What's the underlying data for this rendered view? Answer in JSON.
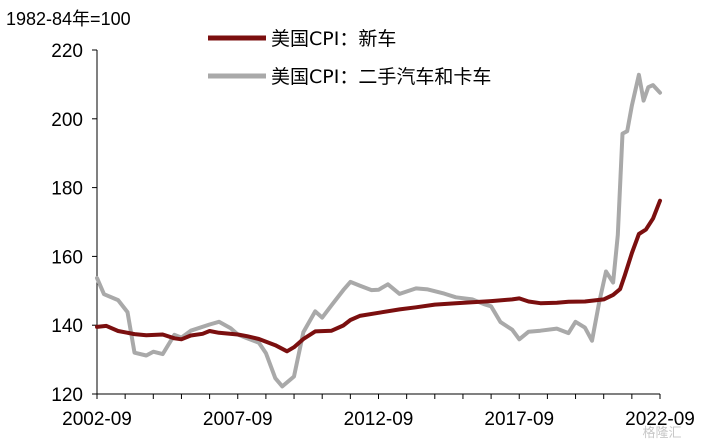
{
  "chart_data": {
    "type": "line",
    "unit_label": "1982-84年=100",
    "ylim": [
      120,
      220
    ],
    "yticks": [
      120,
      140,
      160,
      180,
      200,
      220
    ],
    "xlim": [
      "2002-09",
      "2022-09"
    ],
    "xticks": [
      "2002-09",
      "2007-09",
      "2012-09",
      "2017-09",
      "2022-09"
    ],
    "grid": false,
    "legend_position": "top-center",
    "series": [
      {
        "name": "美国CPI：新车",
        "color": "#7b0f0f",
        "points": [
          [
            "2002-09",
            139.5
          ],
          [
            "2003-01",
            139.8
          ],
          [
            "2003-06",
            138.3
          ],
          [
            "2004-01",
            137.4
          ],
          [
            "2004-06",
            137.1
          ],
          [
            "2005-01",
            137.3
          ],
          [
            "2005-06",
            136.2
          ],
          [
            "2005-09",
            135.9
          ],
          [
            "2006-01",
            137.0
          ],
          [
            "2006-06",
            137.5
          ],
          [
            "2006-09",
            138.3
          ],
          [
            "2007-01",
            137.8
          ],
          [
            "2007-09",
            137.3
          ],
          [
            "2008-01",
            136.8
          ],
          [
            "2008-06",
            136.0
          ],
          [
            "2009-01",
            134.2
          ],
          [
            "2009-06",
            132.4
          ],
          [
            "2009-09",
            133.6
          ],
          [
            "2010-01",
            136.0
          ],
          [
            "2010-06",
            138.2
          ],
          [
            "2011-01",
            138.4
          ],
          [
            "2011-06",
            139.9
          ],
          [
            "2011-09",
            141.5
          ],
          [
            "2012-01",
            142.7
          ],
          [
            "2012-09",
            143.6
          ],
          [
            "2013-06",
            144.6
          ],
          [
            "2014-01",
            145.2
          ],
          [
            "2014-09",
            146.0
          ],
          [
            "2015-06",
            146.4
          ],
          [
            "2016-01",
            146.7
          ],
          [
            "2016-09",
            147.0
          ],
          [
            "2017-06",
            147.5
          ],
          [
            "2017-09",
            147.8
          ],
          [
            "2018-01",
            146.9
          ],
          [
            "2018-06",
            146.4
          ],
          [
            "2019-01",
            146.5
          ],
          [
            "2019-06",
            146.8
          ],
          [
            "2020-01",
            146.9
          ],
          [
            "2020-09",
            147.5
          ],
          [
            "2021-01",
            148.8
          ],
          [
            "2021-04",
            150.5
          ],
          [
            "2021-06",
            154.5
          ],
          [
            "2021-09",
            161.0
          ],
          [
            "2021-12",
            166.5
          ],
          [
            "2022-03",
            167.8
          ],
          [
            "2022-06",
            171.0
          ],
          [
            "2022-09",
            176.2
          ]
        ]
      },
      {
        "name": "美国CPI：二手汽车和卡车",
        "color": "#a9a9a9",
        "points": [
          [
            "2002-09",
            153.7
          ],
          [
            "2002-12",
            149.0
          ],
          [
            "2003-06",
            147.3
          ],
          [
            "2003-10",
            143.8
          ],
          [
            "2004-01",
            132.0
          ],
          [
            "2004-06",
            131.2
          ],
          [
            "2004-09",
            132.3
          ],
          [
            "2005-01",
            131.6
          ],
          [
            "2005-06",
            137.2
          ],
          [
            "2005-09",
            136.4
          ],
          [
            "2006-01",
            138.4
          ],
          [
            "2006-09",
            140.2
          ],
          [
            "2007-01",
            141.0
          ],
          [
            "2007-06",
            139.1
          ],
          [
            "2007-09",
            137.3
          ],
          [
            "2008-01",
            136.2
          ],
          [
            "2008-06",
            134.9
          ],
          [
            "2008-09",
            131.9
          ],
          [
            "2009-01",
            124.6
          ],
          [
            "2009-04",
            122.2
          ],
          [
            "2009-09",
            125.1
          ],
          [
            "2010-01",
            138.0
          ],
          [
            "2010-06",
            144.0
          ],
          [
            "2010-09",
            142.2
          ],
          [
            "2011-01",
            145.8
          ],
          [
            "2011-06",
            150.2
          ],
          [
            "2011-09",
            152.6
          ],
          [
            "2012-01",
            151.5
          ],
          [
            "2012-06",
            150.2
          ],
          [
            "2012-09",
            150.3
          ],
          [
            "2013-01",
            151.9
          ],
          [
            "2013-06",
            149.1
          ],
          [
            "2014-01",
            150.7
          ],
          [
            "2014-06",
            150.4
          ],
          [
            "2015-01",
            149.2
          ],
          [
            "2015-06",
            148.1
          ],
          [
            "2016-01",
            147.5
          ],
          [
            "2016-06",
            146.1
          ],
          [
            "2016-09",
            145.5
          ],
          [
            "2017-01",
            140.9
          ],
          [
            "2017-06",
            138.7
          ],
          [
            "2017-09",
            135.9
          ],
          [
            "2018-01",
            138.1
          ],
          [
            "2018-06",
            138.4
          ],
          [
            "2019-01",
            139.0
          ],
          [
            "2019-06",
            137.7
          ],
          [
            "2019-09",
            141.0
          ],
          [
            "2020-01",
            139.3
          ],
          [
            "2020-04",
            135.5
          ],
          [
            "2020-07",
            146.4
          ],
          [
            "2020-10",
            155.6
          ],
          [
            "2021-01",
            152.4
          ],
          [
            "2021-03",
            166.2
          ],
          [
            "2021-05",
            195.7
          ],
          [
            "2021-07",
            196.4
          ],
          [
            "2021-09",
            203.9
          ],
          [
            "2021-12",
            212.8
          ],
          [
            "2022-02",
            205.3
          ],
          [
            "2022-04",
            209.2
          ],
          [
            "2022-06",
            209.8
          ],
          [
            "2022-09",
            207.6
          ]
        ]
      }
    ]
  },
  "watermark": "格隆汇"
}
